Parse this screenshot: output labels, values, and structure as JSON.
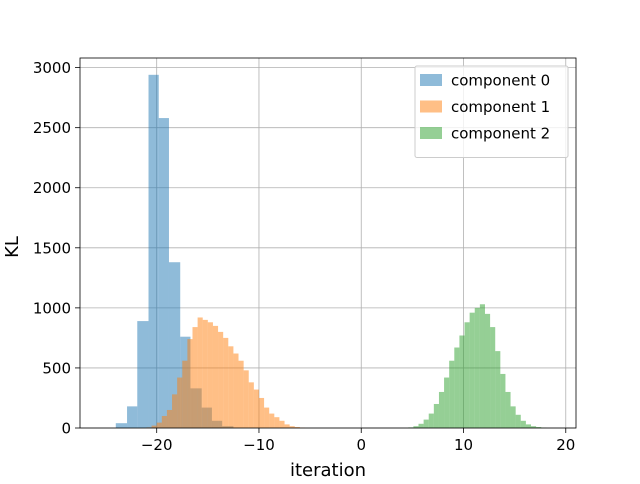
{
  "chart_data": {
    "type": "histogram",
    "title": "",
    "xlabel": "iteration",
    "ylabel": "KL",
    "xlim": [
      -27.5,
      21.0
    ],
    "ylim": [
      0,
      3080
    ],
    "xticks": [
      -20,
      -10,
      0,
      10,
      20
    ],
    "xtick_labels": [
      "−20",
      "−10",
      "0",
      "10",
      "20"
    ],
    "yticks": [
      0,
      500,
      1000,
      1500,
      2000,
      2500,
      3000
    ],
    "ytick_labels": [
      "0",
      "500",
      "1000",
      "1500",
      "2000",
      "2500",
      "3000"
    ],
    "grid": true,
    "legend_position": "top-right",
    "bar_opacity": 0.5,
    "series": [
      {
        "name": "component 0",
        "color": "#1f77b4",
        "bin_edges": [
          -24.0,
          -22.9,
          -21.9,
          -20.8,
          -19.8,
          -18.8,
          -17.7,
          -16.7,
          -15.6,
          -14.6,
          -13.6,
          -12.5
        ],
        "counts": [
          40,
          180,
          890,
          2940,
          2580,
          1380,
          760,
          330,
          170,
          60,
          15
        ]
      },
      {
        "name": "component 1",
        "color": "#ff7f0e",
        "bin_edges": [
          -21.0,
          -20.5,
          -20.0,
          -19.5,
          -19.0,
          -18.5,
          -18.0,
          -17.5,
          -17.0,
          -16.5,
          -16.0,
          -15.5,
          -15.0,
          -14.5,
          -14.0,
          -13.5,
          -13.0,
          -12.5,
          -12.0,
          -11.5,
          -11.0,
          -10.5,
          -10.0,
          -9.5,
          -9.0,
          -8.5,
          -8.0,
          -7.5,
          -7.0,
          -6.5,
          -6.0,
          -5.5
        ],
        "counts": [
          5,
          20,
          45,
          100,
          150,
          280,
          420,
          560,
          740,
          840,
          920,
          900,
          880,
          850,
          800,
          750,
          680,
          620,
          560,
          480,
          380,
          320,
          250,
          170,
          120,
          90,
          60,
          30,
          15,
          8,
          3
        ]
      },
      {
        "name": "component 2",
        "color": "#2ca02c",
        "bin_edges": [
          4.6,
          5.1,
          5.6,
          6.1,
          6.6,
          7.1,
          7.6,
          8.1,
          8.6,
          9.1,
          9.6,
          10.1,
          10.6,
          11.1,
          11.6,
          12.1,
          12.6,
          13.1,
          13.6,
          14.1,
          14.6,
          15.1,
          15.6,
          16.1,
          16.6,
          17.1,
          17.6,
          18.1
        ],
        "counts": [
          5,
          15,
          35,
          70,
          120,
          200,
          300,
          420,
          560,
          670,
          770,
          880,
          960,
          1000,
          1030,
          950,
          840,
          640,
          450,
          300,
          180,
          110,
          60,
          30,
          15,
          8,
          3
        ]
      }
    ]
  }
}
